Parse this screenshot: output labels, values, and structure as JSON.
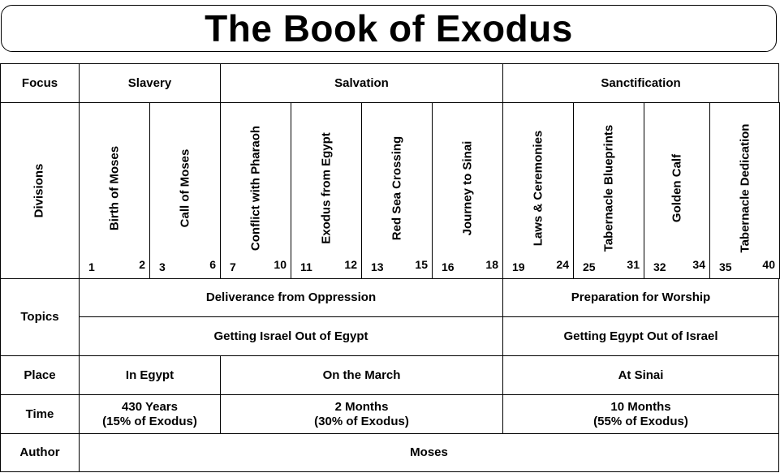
{
  "title": "The Book of Exodus",
  "row_labels": {
    "focus": "Focus",
    "divisions": "Divisions",
    "topics": "Topics",
    "place": "Place",
    "time": "Time",
    "author": "Author"
  },
  "focus": [
    "Slavery",
    "Salvation",
    "Sanctification"
  ],
  "divisions": [
    {
      "label": "Birth of Moses",
      "start": "1",
      "end": "2"
    },
    {
      "label": "Call of Moses",
      "start": "3",
      "end": "6"
    },
    {
      "label": "Conflict with Pharaoh",
      "start": "7",
      "end": "10"
    },
    {
      "label": "Exodus from Egypt",
      "start": "11",
      "end": "12"
    },
    {
      "label": "Red Sea Crossing",
      "start": "13",
      "end": "15"
    },
    {
      "label": "Journey to Sinai",
      "start": "16",
      "end": "18"
    },
    {
      "label": "Laws & Ceremonies",
      "start": "19",
      "end": "24"
    },
    {
      "label": "Tabernacle Blueprints",
      "start": "25",
      "end": "31"
    },
    {
      "label": "Golden Calf",
      "start": "32",
      "end": "34"
    },
    {
      "label": "Tabernacle Dedication",
      "start": "35",
      "end": "40"
    }
  ],
  "topics": {
    "row1": [
      "Deliverance from Oppression",
      "Preparation for Worship"
    ],
    "row2": [
      "Getting Israel Out of Egypt",
      "Getting Egypt Out of Israel"
    ]
  },
  "place": [
    "In Egypt",
    "On the March",
    "At Sinai"
  ],
  "time": [
    {
      "line1": "430 Years",
      "line2": "(15% of Exodus)"
    },
    {
      "line1": "2 Months",
      "line2": "(30% of Exodus)"
    },
    {
      "line1": "10 Months",
      "line2": "(55% of Exodus)"
    }
  ],
  "author": "Moses"
}
